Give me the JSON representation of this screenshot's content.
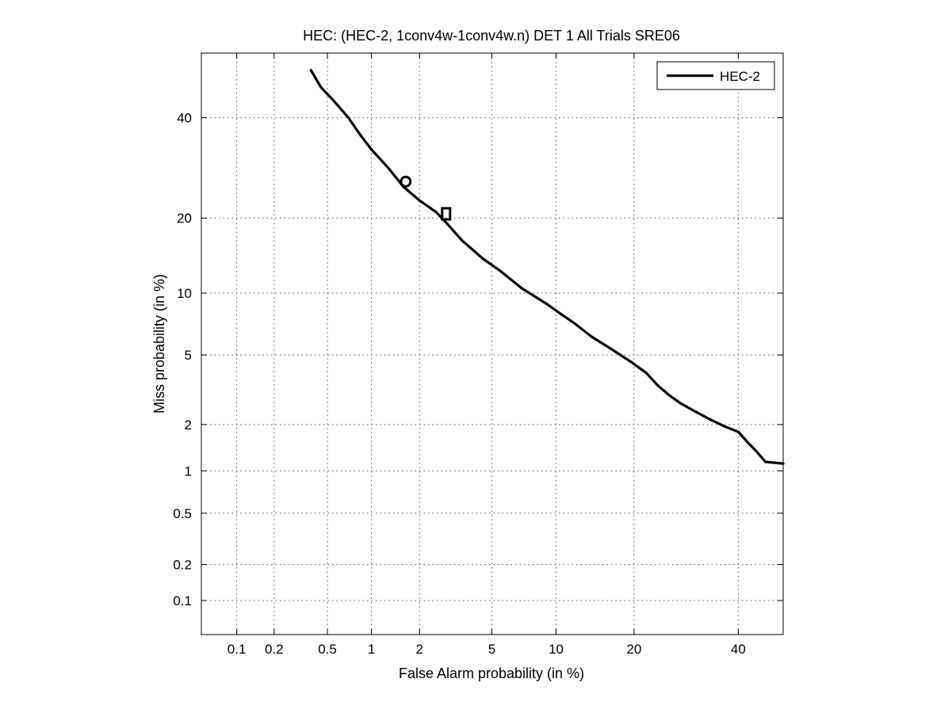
{
  "chart_data": {
    "type": "line",
    "title": "HEC: (HEC-2, 1conv4w-1conv4w.n) DET 1 All Trials SRE06",
    "xlabel": "False Alarm probability (in %)",
    "ylabel": "Miss probability (in %)",
    "x_scale": "probit",
    "y_scale": "probit",
    "xlim": [
      0.05,
      50
    ],
    "ylim": [
      0.05,
      55
    ],
    "x_ticks": [
      0.1,
      0.2,
      0.5,
      1,
      2,
      5,
      10,
      20,
      40
    ],
    "x_tick_labels": [
      "0.1",
      "0.2",
      "0.5",
      "1",
      "2",
      "5",
      "10",
      "20",
      "40"
    ],
    "y_ticks": [
      0.1,
      0.2,
      0.5,
      1,
      2,
      5,
      10,
      20,
      40
    ],
    "y_tick_labels": [
      "0.1",
      "0.2",
      "0.5",
      "1",
      "2",
      "5",
      "10",
      "20",
      "40"
    ],
    "grid": true,
    "legend_position": "top-right",
    "series": [
      {
        "name": "HEC-2",
        "color": "#000000",
        "x": [
          0.38,
          0.45,
          0.55,
          0.7,
          0.85,
          1.0,
          1.3,
          1.6,
          2.0,
          2.5,
          2.8,
          3.5,
          4.5,
          5.5,
          7.0,
          9.0,
          10.5,
          12.0,
          14.0,
          16.5,
          19.5,
          22.0,
          24.0,
          26.0,
          28.0,
          31.0,
          34.0,
          37.0,
          40.0,
          42.0,
          44.0,
          46.0,
          50.0
        ],
        "y": [
          51.0,
          47.0,
          44.0,
          40.0,
          36.0,
          33.0,
          29.0,
          25.5,
          23.0,
          21.0,
          19.5,
          16.5,
          14.0,
          12.5,
          10.5,
          9.0,
          8.0,
          7.2,
          6.2,
          5.4,
          4.6,
          4.0,
          3.4,
          3.0,
          2.7,
          2.4,
          2.15,
          1.95,
          1.8,
          1.55,
          1.35,
          1.15,
          1.12
        ]
      }
    ],
    "markers": [
      {
        "shape": "circle",
        "x": 1.65,
        "y": 26.5
      },
      {
        "shape": "square",
        "x": 2.85,
        "y": 20.7
      }
    ]
  }
}
